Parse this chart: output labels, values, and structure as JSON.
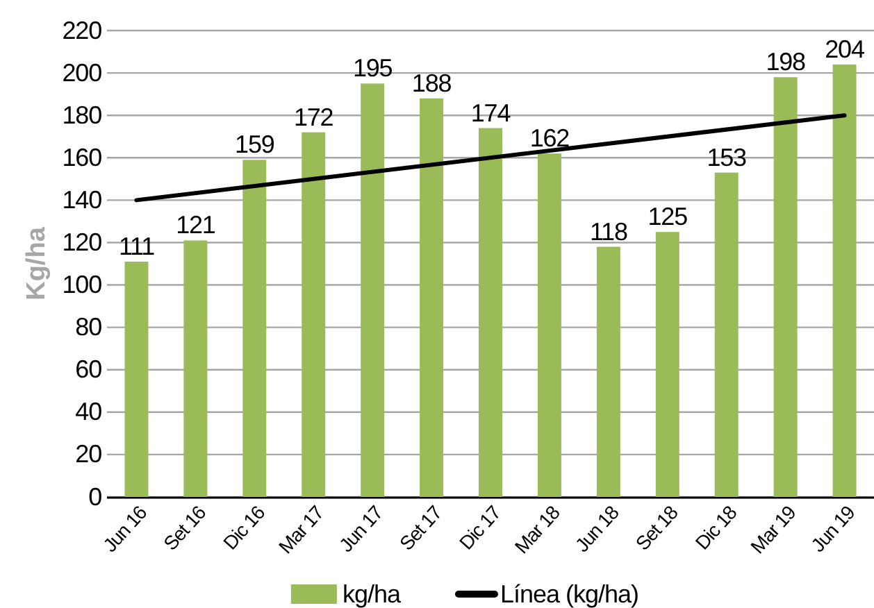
{
  "chart_data": {
    "type": "bar",
    "ylabel": "Kg/ha",
    "categories": [
      "Jun 16",
      "Set 16",
      "Dic 16",
      "Mar 17",
      "Jun 17",
      "Set 17",
      "Dic 17",
      "Mar 18",
      "Jun 18",
      "Set 18",
      "Dic 18",
      "Mar 19",
      "Jun 19"
    ],
    "series": [
      {
        "name": "kg/ha",
        "color": "#9bbb59",
        "values": [
          111,
          121,
          159,
          172,
          195,
          188,
          174,
          162,
          118,
          125,
          153,
          198,
          204
        ],
        "value_labels": [
          "111",
          "121",
          "159",
          "172",
          "195",
          "188",
          "174",
          "162",
          "118",
          "125",
          "153",
          "198",
          "204"
        ]
      },
      {
        "name": "Línea (kg/ha)",
        "type": "line",
        "color": "#000000",
        "line_style": "solid",
        "x": [
          "Jun 16",
          "Jun 19"
        ],
        "values": [
          140,
          180
        ]
      }
    ],
    "ylim": [
      0,
      220
    ],
    "yticks": [
      0,
      20,
      40,
      60,
      80,
      100,
      120,
      140,
      160,
      180,
      200,
      220
    ],
    "grid": "y",
    "legend": "bottom"
  }
}
